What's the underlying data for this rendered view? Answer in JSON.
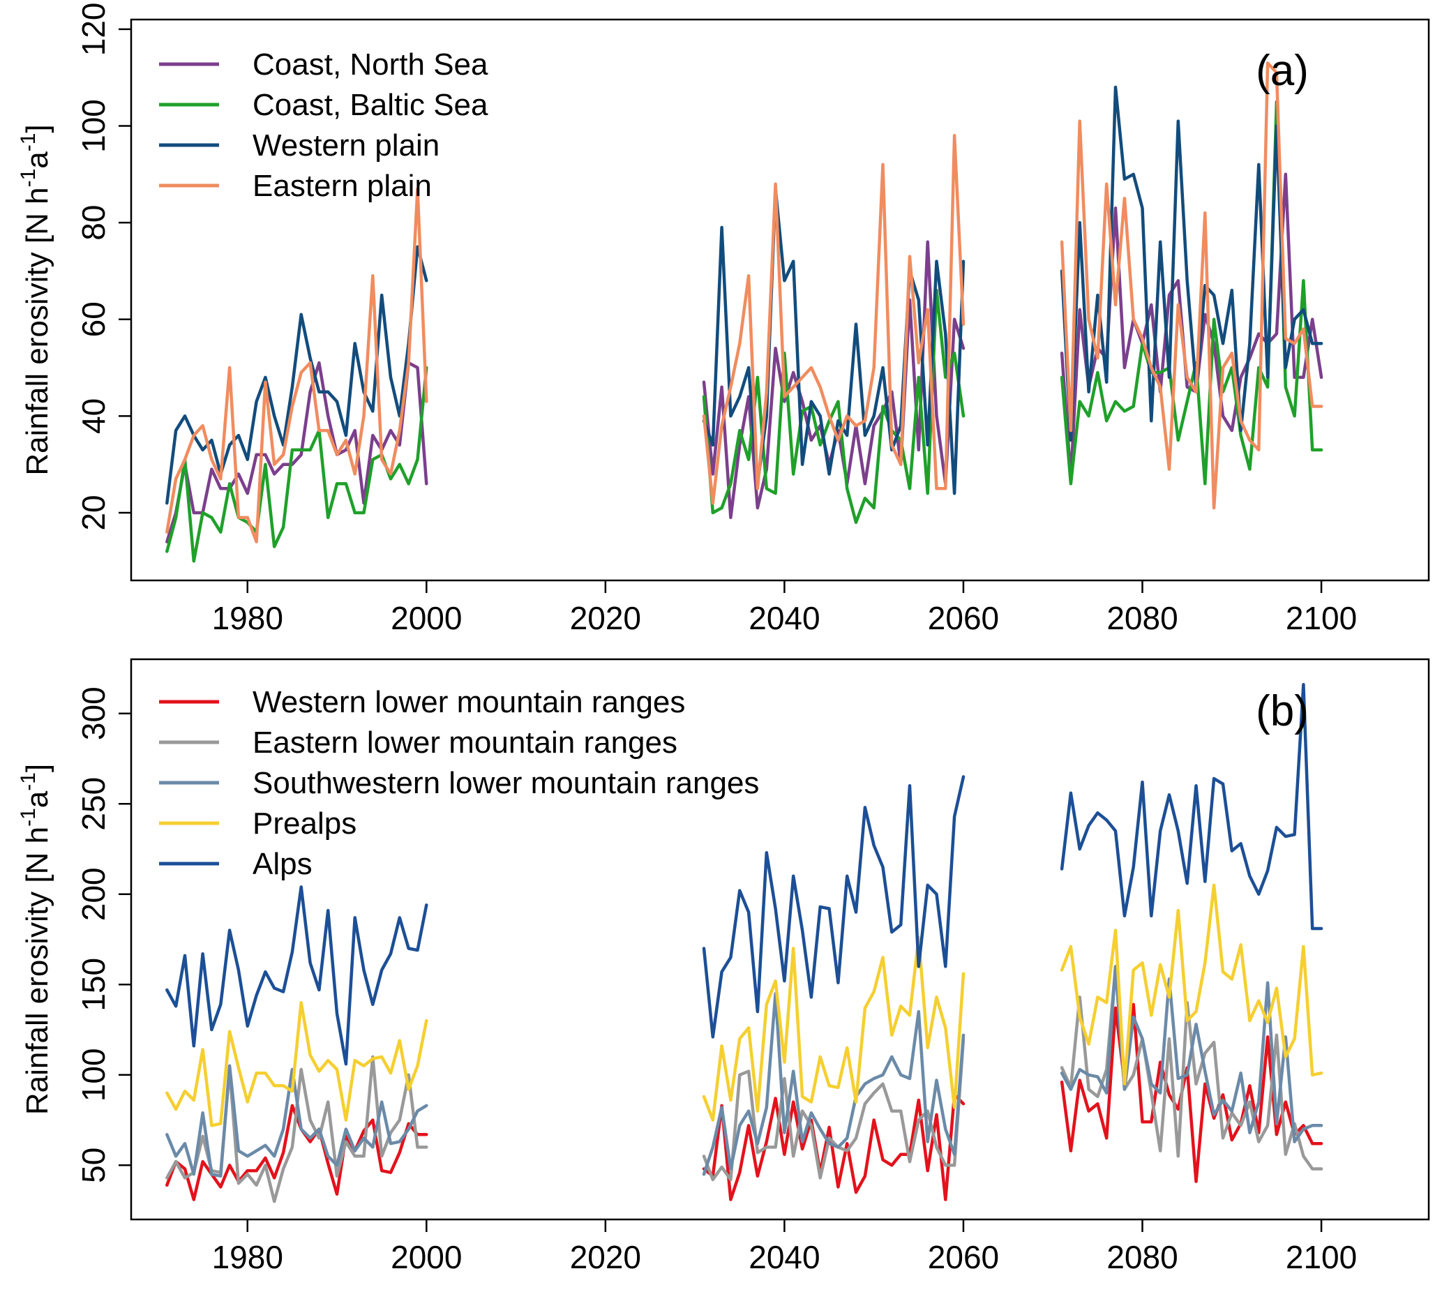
{
  "chart_data": [
    {
      "type": "line",
      "panel_label": "(a)",
      "ylabel_main": "Rainfall erosivity [N h",
      "ylabel_sup1": "-1",
      "ylabel_mid": "a",
      "ylabel_sup2": "-1",
      "ylabel_end": "]",
      "xlim": [
        1967,
        2112
      ],
      "ylim": [
        6,
        122
      ],
      "xticks": [
        1980,
        2000,
        2020,
        2040,
        2060,
        2080,
        2100
      ],
      "yticks": [
        20,
        40,
        60,
        80,
        100,
        120
      ],
      "legend_position": "top-left",
      "segments": [
        [
          1971,
          2000
        ],
        [
          2031,
          2060
        ],
        [
          2071,
          2100
        ]
      ],
      "series": [
        {
          "name": "Coast, North Sea",
          "color": "#7b3f8c",
          "values": [
            14,
            20,
            30,
            20,
            20,
            29,
            25,
            25,
            28,
            24,
            32,
            32,
            28,
            30,
            30,
            32,
            45,
            51,
            40,
            32,
            33,
            37,
            22,
            36,
            33,
            37,
            34,
            51,
            50,
            26,
            47,
            28,
            46,
            19,
            34,
            44,
            21,
            29,
            54,
            43,
            49,
            43,
            35,
            38,
            30,
            37,
            26,
            38,
            26,
            38,
            41,
            45,
            30,
            64,
            33,
            76,
            40,
            26,
            60,
            54,
            53,
            27,
            62,
            46,
            54,
            52,
            83,
            50,
            60,
            55,
            63,
            45,
            65,
            68,
            46,
            45,
            61,
            55,
            40,
            37,
            48,
            52,
            57,
            55,
            57,
            90,
            48,
            48,
            60,
            48
          ]
        },
        {
          "name": "Coast, Baltic Sea",
          "color": "#1fa02a",
          "values": [
            12,
            19,
            31,
            10,
            20,
            19,
            16,
            26,
            19,
            18,
            16,
            30,
            13,
            17,
            33,
            33,
            33,
            37,
            19,
            26,
            26,
            20,
            20,
            31,
            32,
            27,
            30,
            26,
            31,
            50,
            44,
            20,
            21,
            26,
            37,
            31,
            48,
            25,
            24,
            53,
            28,
            41,
            42,
            34,
            39,
            43,
            25,
            18,
            23,
            21,
            42,
            37,
            35,
            25,
            48,
            24,
            66,
            48,
            53,
            40,
            48,
            26,
            43,
            40,
            49,
            39,
            43,
            41,
            42,
            55,
            49,
            49,
            50,
            35,
            43,
            51,
            26,
            60,
            45,
            50,
            36,
            29,
            50,
            46,
            105,
            46,
            40,
            68,
            33,
            33
          ]
        },
        {
          "name": "Western plain",
          "color": "#124c7c",
          "values": [
            22,
            37,
            40,
            36,
            33,
            35,
            28,
            34,
            36,
            31,
            43,
            48,
            40,
            34,
            46,
            61,
            52,
            45,
            45,
            43,
            36,
            55,
            45,
            41,
            65,
            48,
            40,
            55,
            75,
            68,
            39,
            34,
            79,
            40,
            44,
            50,
            26,
            40,
            87,
            68,
            72,
            30,
            43,
            40,
            28,
            39,
            36,
            59,
            36,
            40,
            50,
            33,
            38,
            70,
            64,
            34,
            72,
            57,
            24,
            72,
            70,
            35,
            80,
            45,
            65,
            47,
            108,
            89,
            90,
            83,
            39,
            76,
            48,
            101,
            68,
            46,
            67,
            65,
            55,
            66,
            37,
            55,
            92,
            48,
            100,
            50,
            60,
            62,
            55,
            55
          ]
        },
        {
          "name": "Eastern plain",
          "color": "#f08c5f",
          "values": [
            16,
            27,
            31,
            36,
            38,
            31,
            27,
            50,
            19,
            19,
            14,
            47,
            30,
            32,
            42,
            49,
            51,
            37,
            37,
            32,
            35,
            28,
            40,
            69,
            31,
            28,
            37,
            51,
            87,
            43,
            40,
            22,
            38,
            46,
            55,
            69,
            25,
            45,
            88,
            44,
            46,
            48,
            50,
            46,
            40,
            35,
            40,
            38,
            39,
            50,
            92,
            34,
            30,
            73,
            51,
            62,
            25,
            25,
            98,
            59,
            76,
            37,
            101,
            60,
            52,
            88,
            63,
            85,
            60,
            56,
            50,
            46,
            29,
            63,
            48,
            45,
            82,
            21,
            50,
            53,
            39,
            35,
            33,
            113,
            111,
            56,
            55,
            58,
            42,
            42
          ]
        }
      ]
    },
    {
      "type": "line",
      "panel_label": "(b)",
      "ylabel_main": "Rainfall erosivity [N h",
      "ylabel_sup1": "-1",
      "ylabel_mid": "a",
      "ylabel_sup2": "-1",
      "ylabel_end": "]",
      "xlim": [
        1967,
        2112
      ],
      "ylim": [
        20,
        330
      ],
      "xticks": [
        1980,
        2000,
        2020,
        2040,
        2060,
        2080,
        2100
      ],
      "yticks": [
        50,
        100,
        150,
        200,
        250,
        300
      ],
      "legend_position": "top-left",
      "segments": [
        [
          1971,
          2000
        ],
        [
          2031,
          2060
        ],
        [
          2071,
          2100
        ]
      ],
      "series": [
        {
          "name": "Western lower mountain ranges",
          "color": "#e3121c",
          "values": [
            39,
            52,
            48,
            31,
            52,
            45,
            38,
            50,
            41,
            47,
            47,
            54,
            43,
            57,
            83,
            70,
            63,
            70,
            51,
            34,
            66,
            58,
            69,
            75,
            47,
            46,
            57,
            73,
            67,
            67,
            48,
            44,
            83,
            31,
            46,
            72,
            44,
            63,
            87,
            56,
            85,
            59,
            75,
            46,
            71,
            38,
            62,
            35,
            44,
            75,
            53,
            50,
            56,
            56,
            86,
            47,
            78,
            31,
            89,
            84,
            96,
            58,
            97,
            80,
            84,
            65,
            137,
            96,
            139,
            74,
            74,
            107,
            89,
            81,
            104,
            41,
            95,
            76,
            89,
            64,
            73,
            94,
            68,
            121,
            67,
            85,
            67,
            72,
            62,
            62
          ]
        },
        {
          "name": "Eastern lower mountain ranges",
          "color": "#999999",
          "values": [
            43,
            52,
            43,
            46,
            66,
            47,
            46,
            103,
            40,
            45,
            39,
            50,
            30,
            48,
            60,
            103,
            75,
            65,
            85,
            44,
            63,
            55,
            55,
            110,
            55,
            68,
            75,
            100,
            60,
            60,
            55,
            42,
            49,
            42,
            100,
            102,
            57,
            60,
            60,
            98,
            55,
            80,
            72,
            43,
            65,
            60,
            58,
            65,
            84,
            90,
            95,
            80,
            80,
            52,
            75,
            80,
            60,
            50,
            50,
            120,
            104,
            93,
            143,
            92,
            88,
            103,
            160,
            92,
            100,
            120,
            90,
            58,
            120,
            55,
            140,
            95,
            112,
            118,
            65,
            79,
            72,
            85,
            63,
            72,
            122,
            56,
            73,
            55,
            48,
            48
          ]
        },
        {
          "name": "Southwestern lower mountain ranges",
          "color": "#6b8aa8",
          "values": [
            67,
            55,
            62,
            45,
            79,
            45,
            44,
            105,
            58,
            55,
            58,
            61,
            55,
            70,
            103,
            70,
            65,
            70,
            55,
            50,
            70,
            58,
            65,
            60,
            85,
            62,
            63,
            70,
            80,
            83,
            45,
            60,
            82,
            48,
            72,
            80,
            62,
            82,
            145,
            68,
            102,
            63,
            79,
            70,
            62,
            60,
            65,
            88,
            95,
            98,
            100,
            110,
            100,
            98,
            135,
            63,
            97,
            70,
            56,
            122,
            101,
            92,
            103,
            100,
            99,
            90,
            160,
            92,
            132,
            120,
            95,
            90,
            153,
            98,
            100,
            128,
            102,
            78,
            86,
            80,
            101,
            68,
            85,
            151,
            73,
            121,
            63,
            70,
            72,
            72
          ]
        },
        {
          "name": "Prealps",
          "color": "#f5cf31",
          "values": [
            90,
            81,
            91,
            86,
            114,
            72,
            73,
            124,
            104,
            85,
            101,
            101,
            94,
            94,
            91,
            140,
            111,
            102,
            108,
            103,
            75,
            108,
            105,
            109,
            110,
            101,
            119,
            92,
            105,
            130,
            88,
            75,
            116,
            86,
            120,
            126,
            80,
            139,
            152,
            107,
            170,
            88,
            85,
            110,
            94,
            93,
            115,
            85,
            137,
            146,
            165,
            122,
            138,
            133,
            176,
            115,
            143,
            126,
            82,
            156,
            158,
            171,
            132,
            117,
            143,
            140,
            180,
            95,
            158,
            162,
            133,
            161,
            143,
            191,
            130,
            135,
            162,
            205,
            157,
            153,
            172,
            130,
            141,
            129,
            148,
            110,
            120,
            171,
            100,
            101
          ]
        },
        {
          "name": "Alps",
          "color": "#1c4f96",
          "values": [
            147,
            138,
            166,
            116,
            167,
            125,
            139,
            180,
            158,
            127,
            144,
            157,
            148,
            146,
            168,
            204,
            162,
            147,
            191,
            134,
            106,
            187,
            158,
            139,
            158,
            167,
            187,
            170,
            169,
            194,
            170,
            121,
            157,
            165,
            202,
            190,
            135,
            223,
            192,
            152,
            210,
            180,
            143,
            193,
            192,
            151,
            210,
            190,
            248,
            227,
            215,
            179,
            183,
            260,
            160,
            205,
            200,
            160,
            243,
            265,
            214,
            256,
            225,
            238,
            245,
            241,
            235,
            188,
            215,
            262,
            188,
            235,
            255,
            235,
            206,
            260,
            207,
            264,
            261,
            224,
            228,
            210,
            200,
            213,
            237,
            232,
            233,
            316,
            181,
            181
          ]
        }
      ]
    }
  ]
}
